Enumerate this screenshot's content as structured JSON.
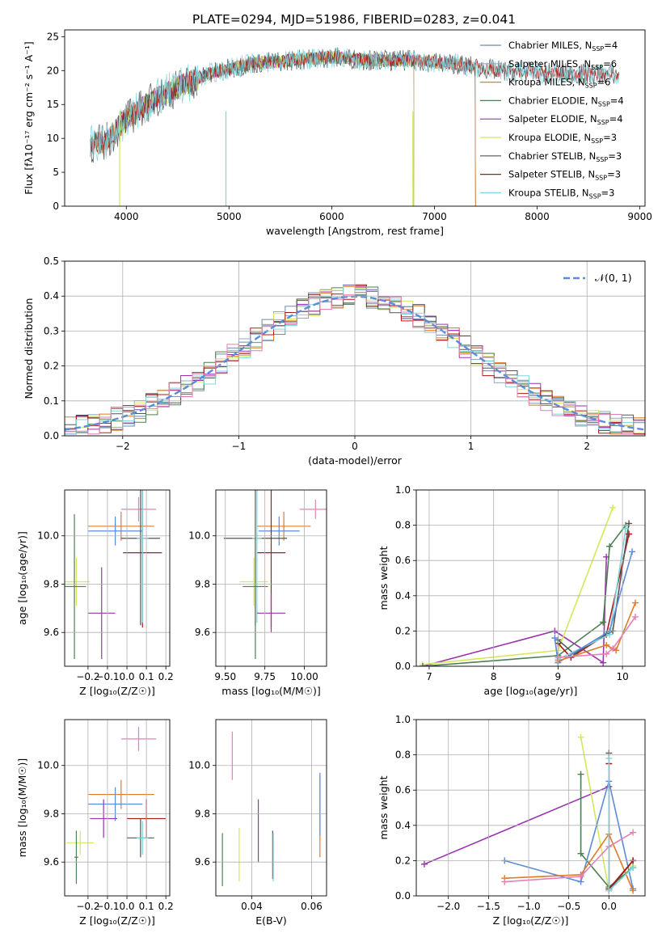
{
  "figure": {
    "title": "PLATE=0294, MJD=51986, FIBERID=0283, z=0.041"
  },
  "colors": {
    "Chabrier MILES": "#6a8caf",
    "Salpeter MILES": "#8fa9c4",
    "Kroupa MILES": "#e07b28",
    "Chabrier ELODIE": "#4c8050",
    "Salpeter ELODIE": "#9a33b0",
    "Kroupa ELODIE": "#d4e85a",
    "Chabrier STELIB": "#555555",
    "Salpeter STELIB": "#b01818",
    "Kroupa STELIB": "#7fd6dc",
    "pink": "#e57fb5",
    "blue": "#5b8bd9",
    "gauss": "#5b8bd9"
  },
  "chart_data": [
    {
      "id": "spectrum",
      "type": "line",
      "title": "PLATE=0294, MJD=51986, FIBERID=0283, z=0.041",
      "xlabel": "wavelength [Angstrom, rest frame]",
      "ylabel": "Flux [fλ10⁻¹⁷ erg cm⁻² s⁻¹ A⁻¹]",
      "xlim": [
        3400,
        9050
      ],
      "ylim": [
        0,
        26
      ],
      "xticks": [
        4000,
        5000,
        6000,
        7000,
        8000,
        9000
      ],
      "yticks": [
        0,
        5,
        10,
        15,
        20,
        25
      ],
      "grid": false,
      "legend_position": "right",
      "legend": [
        {
          "model": "Chabrier MILES",
          "n": "4"
        },
        {
          "model": "Salpeter MILES",
          "n": "6"
        },
        {
          "model": "Kroupa MILES",
          "n": "6"
        },
        {
          "model": "Chabrier ELODIE",
          "n": "4"
        },
        {
          "model": "Salpeter ELODIE",
          "n": "4"
        },
        {
          "model": "Kroupa ELODIE",
          "n": "3"
        },
        {
          "model": "Chabrier STELIB",
          "n": "3"
        },
        {
          "model": "Salpeter STELIB",
          "n": "3"
        },
        {
          "model": "Kroupa STELIB",
          "n": "3"
        }
      ],
      "continuum": {
        "x": [
          3650,
          3800,
          3950,
          4100,
          4300,
          4500,
          4800,
          5200,
          5600,
          6000,
          6400,
          6800,
          7200,
          7600,
          8000,
          8400,
          8800
        ],
        "y": [
          9,
          9.5,
          12,
          14,
          16,
          17.5,
          19.5,
          21,
          21.5,
          22,
          21.5,
          21.5,
          21,
          20,
          19.7,
          19.5,
          19.5
        ]
      },
      "coverage": [
        {
          "model": "Chabrier MILES",
          "x": [
            3650,
            7400
          ]
        },
        {
          "model": "Salpeter MILES",
          "x": [
            3650,
            7400
          ]
        },
        {
          "model": "Kroupa MILES",
          "x": [
            3650,
            7400
          ]
        },
        {
          "model": "Chabrier ELODIE",
          "x": [
            3900,
            6800
          ]
        },
        {
          "model": "Salpeter ELODIE",
          "x": [
            3900,
            6800
          ]
        },
        {
          "model": "Kroupa ELODIE",
          "x": [
            3900,
            6800
          ]
        },
        {
          "model": "Chabrier STELIB",
          "x": [
            3650,
            8800
          ]
        },
        {
          "model": "Salpeter STELIB",
          "x": [
            3650,
            8800
          ]
        },
        {
          "model": "Kroupa STELIB",
          "x": [
            3650,
            8800
          ]
        }
      ]
    },
    {
      "id": "residuals",
      "type": "histogram",
      "xlabel": "(data-model)/error",
      "ylabel": "Normed distribution",
      "xlim": [
        -2.5,
        2.5
      ],
      "ylim": [
        0,
        0.5
      ],
      "xticks": [
        -2,
        -1,
        0,
        1,
        2
      ],
      "yticks": [
        0.0,
        0.1,
        0.2,
        0.3,
        0.4,
        0.5
      ],
      "grid": true,
      "legend_position": "top-right",
      "legend": [
        {
          "label": "𝒩(0, 1)"
        }
      ],
      "bin_width": 0.1,
      "bin_start": -2.5
    },
    {
      "id": "z-age",
      "type": "errorbar",
      "xlabel": "Z [log₁₀(Z/Z☉)]",
      "ylabel": "age  [log₁₀(age/yr)]",
      "xlim": [
        -0.32,
        0.22
      ],
      "ylim": [
        9.46,
        10.19
      ],
      "xticks": [
        -0.2,
        -0.1,
        0.0,
        0.1,
        0.2
      ],
      "yticks": [
        9.6,
        9.8,
        10.0
      ],
      "grid": true,
      "points": [
        {
          "color": "pink",
          "x": 0.06,
          "y": 10.11,
          "xerr": 0.09,
          "yerr": 0.05
        },
        {
          "color": "Kroupa MILES",
          "x": -0.03,
          "y": 10.04,
          "xerr": 0.17,
          "yerr": 0.06
        },
        {
          "color": "blue",
          "x": -0.06,
          "y": 10.02,
          "xerr": 0.14,
          "yerr": 0.06
        },
        {
          "color": "Chabrier STELIB",
          "x": 0.07,
          "y": 9.99,
          "xerr": 0.1,
          "yerr": 0.36
        },
        {
          "color": "Salpeter STELIB",
          "x": 0.08,
          "y": 9.93,
          "xerr": 0.1,
          "yerr": 0.31
        },
        {
          "color": "Kroupa STELIB",
          "x": 0.08,
          "y": 9.99,
          "xerr": 0.03,
          "yerr": 0.35
        },
        {
          "color": "Kroupa ELODIE",
          "x": -0.26,
          "y": 9.81,
          "xerr": 0.07,
          "yerr": 0.1
        },
        {
          "color": "Chabrier ELODIE",
          "x": -0.27,
          "y": 9.79,
          "xerr": 0.06,
          "yerr": 0.3
        },
        {
          "color": "Salpeter ELODIE",
          "x": -0.13,
          "y": 9.68,
          "xerr": 0.07,
          "yerr": 0.19
        }
      ]
    },
    {
      "id": "mass-age",
      "type": "errorbar",
      "xlabel": "mass [log₁₀(M/M☉)]",
      "ylabel": "",
      "xlim": [
        9.44,
        10.14
      ],
      "ylim": [
        9.46,
        10.19
      ],
      "xticks": [
        9.5,
        9.75,
        10.0
      ],
      "yticks": [
        9.6,
        9.8,
        10.0
      ],
      "grid": true,
      "points": [
        {
          "color": "pink",
          "x": 10.07,
          "y": 10.11,
          "xerr": 0.1,
          "yerr": 0.04
        },
        {
          "color": "Kroupa MILES",
          "x": 9.87,
          "y": 10.04,
          "xerr": 0.17,
          "yerr": 0.06
        },
        {
          "color": "blue",
          "x": 9.84,
          "y": 10.02,
          "xerr": 0.13,
          "yerr": 0.06
        },
        {
          "color": "Chabrier STELIB",
          "x": 9.69,
          "y": 9.99,
          "xerr": 0.2,
          "yerr": 0.36
        },
        {
          "color": "Salpeter STELIB",
          "x": 9.79,
          "y": 9.93,
          "xerr": 0.09,
          "yerr": 0.31
        },
        {
          "color": "Kroupa STELIB",
          "x": 9.7,
          "y": 9.99,
          "xerr": 0.03,
          "yerr": 0.35
        },
        {
          "color": "Kroupa ELODIE",
          "x": 9.68,
          "y": 9.81,
          "xerr": 0.09,
          "yerr": 0.1
        },
        {
          "color": "Chabrier ELODIE",
          "x": 9.69,
          "y": 9.79,
          "xerr": 0.08,
          "yerr": 0.3
        },
        {
          "color": "Salpeter ELODIE",
          "x": 9.79,
          "y": 9.68,
          "xerr": 0.09,
          "yerr": 0.08
        }
      ]
    },
    {
      "id": "age-weight",
      "type": "line",
      "xlabel": "age  [log₁₀(age/yr)]",
      "ylabel": "mass weight",
      "xlim": [
        6.8,
        10.35
      ],
      "ylim": [
        0,
        1
      ],
      "xticks": [
        7,
        8,
        9,
        10
      ],
      "yticks": [
        0.0,
        0.2,
        0.4,
        0.6,
        0.8,
        1.0
      ],
      "grid": true,
      "series": [
        {
          "color": "Salpeter ELODIE",
          "x": [
            6.9,
            8.95,
            9.7,
            9.75
          ],
          "y": [
            0.0,
            0.2,
            0.02,
            0.62
          ]
        },
        {
          "color": "Kroupa ELODIE",
          "x": [
            6.9,
            9.0,
            9.85
          ],
          "y": [
            0.01,
            0.09,
            0.9
          ]
        },
        {
          "color": "Chabrier ELODIE",
          "x": [
            6.9,
            9.0,
            9.7,
            9.8,
            10.05
          ],
          "y": [
            0.0,
            0.06,
            0.25,
            0.68,
            0.8
          ]
        },
        {
          "color": "Salpeter STELIB",
          "x": [
            9.0,
            9.2,
            9.75,
            10.1
          ],
          "y": [
            0.13,
            0.05,
            0.18,
            0.75
          ]
        },
        {
          "color": "Chabrier STELIB",
          "x": [
            9.0,
            9.25,
            9.85,
            10.1
          ],
          "y": [
            0.15,
            0.07,
            0.2,
            0.81
          ]
        },
        {
          "color": "Kroupa STELIB",
          "x": [
            9.0,
            9.8,
            10.05
          ],
          "y": [
            0.04,
            0.18,
            0.78
          ]
        },
        {
          "color": "blue",
          "x": [
            8.95,
            9.0,
            9.8,
            10.15
          ],
          "y": [
            0.16,
            0.02,
            0.2,
            0.65
          ]
        },
        {
          "color": "Kroupa MILES",
          "x": [
            9.0,
            9.75,
            9.9,
            10.2
          ],
          "y": [
            0.03,
            0.12,
            0.09,
            0.36
          ]
        },
        {
          "color": "pink",
          "x": [
            9.0,
            9.75,
            9.85,
            10.2
          ],
          "y": [
            0.05,
            0.07,
            0.1,
            0.28
          ]
        }
      ]
    },
    {
      "id": "z-mass",
      "type": "errorbar",
      "xlabel": "Z [log₁₀(Z/Z☉)]",
      "ylabel": "mass [log₁₀(M/M☉)]",
      "xlim": [
        -0.32,
        0.22
      ],
      "ylim": [
        9.46,
        10.19
      ],
      "xticks": [
        -0.2,
        -0.1,
        0.0,
        0.1,
        0.2
      ],
      "yticks": [
        9.6,
        9.8,
        10.0
      ],
      "grid": true,
      "points": [
        {
          "color": "pink",
          "x": 0.06,
          "y": 10.11,
          "xerr": 0.09,
          "yerr": 0.05
        },
        {
          "color": "Kroupa MILES",
          "x": -0.03,
          "y": 9.88,
          "xerr": 0.17,
          "yerr": 0.06
        },
        {
          "color": "blue",
          "x": -0.06,
          "y": 9.84,
          "xerr": 0.14,
          "yerr": 0.07
        },
        {
          "color": "Salpeter STELIB",
          "x": 0.1,
          "y": 9.78,
          "xerr": 0.1,
          "yerr": 0.08
        },
        {
          "color": "Chabrier STELIB",
          "x": 0.07,
          "y": 9.7,
          "xerr": 0.07,
          "yerr": 0.08
        },
        {
          "color": "Kroupa STELIB",
          "x": 0.08,
          "y": 9.7,
          "xerr": 0.03,
          "yerr": 0.07
        },
        {
          "color": "Kroupa ELODIE",
          "x": -0.24,
          "y": 9.68,
          "xerr": 0.07,
          "yerr": 0.05
        },
        {
          "color": "Chabrier ELODIE",
          "x": -0.26,
          "y": 9.62,
          "xerr": 0.01,
          "yerr": 0.11
        },
        {
          "color": "Salpeter ELODIE",
          "x": -0.12,
          "y": 9.78,
          "xerr": 0.07,
          "yerr": 0.08
        }
      ]
    },
    {
      "id": "ebv-mass",
      "type": "errorbar",
      "xlabel": "E(B-V)",
      "ylabel": "",
      "xlim": [
        0.028,
        0.065
      ],
      "ylim": [
        9.46,
        10.19
      ],
      "xticks": [
        0.04,
        0.06
      ],
      "yticks": [
        9.6,
        9.8,
        10.0
      ],
      "grid": true,
      "points": [
        {
          "color": "pink",
          "x": 0.0335,
          "y": 10.04,
          "xerr": 0,
          "yerr": 0.1
        },
        {
          "color": "Kroupa MILES",
          "x": 0.0628,
          "y": 9.79,
          "xerr": 0,
          "yerr": 0.17
        },
        {
          "color": "blue",
          "x": 0.0628,
          "y": 9.84,
          "xerr": 0,
          "yerr": 0.13
        },
        {
          "color": "Salpeter ELODIE",
          "x": 0.0422,
          "y": 9.73,
          "xerr": 0,
          "yerr": 0.13
        },
        {
          "color": "Chabrier STELIB",
          "x": 0.047,
          "y": 9.63,
          "xerr": 0,
          "yerr": 0.1
        },
        {
          "color": "Kroupa STELIB",
          "x": 0.0472,
          "y": 9.62,
          "xerr": 0,
          "yerr": 0.1
        },
        {
          "color": "Chabrier ELODIE",
          "x": 0.0302,
          "y": 9.61,
          "xerr": 0,
          "yerr": 0.11
        },
        {
          "color": "Kroupa ELODIE",
          "x": 0.0358,
          "y": 9.63,
          "xerr": 0,
          "yerr": 0.11
        }
      ]
    },
    {
      "id": "z-weight",
      "type": "line",
      "xlabel": "Z [log₁₀(Z/Z☉)]",
      "ylabel": "mass weight",
      "xlim": [
        -2.4,
        0.45
      ],
      "ylim": [
        0,
        1
      ],
      "xticks": [
        -2.0,
        -1.5,
        -1.0,
        -0.5,
        0.0
      ],
      "yticks": [
        0.0,
        0.2,
        0.4,
        0.6,
        0.8,
        1.0
      ],
      "grid": true,
      "series": [
        {
          "color": "Salpeter ELODIE",
          "x": [
            -2.3,
            0.0
          ],
          "y": [
            0.18,
            0.62
          ]
        },
        {
          "color": "Kroupa ELODIE",
          "x": [
            -0.35,
            0.0,
            0.3
          ],
          "y": [
            0.9,
            0.03,
            0.17
          ]
        },
        {
          "color": "Chabrier ELODIE",
          "x": [
            -0.35,
            -0.35,
            0.0,
            0.3
          ],
          "y": [
            0.69,
            0.24,
            0.05,
            0.16
          ]
        },
        {
          "color": "blue",
          "x": [
            -1.3,
            -0.35,
            0.0,
            0.3
          ],
          "y": [
            0.2,
            0.08,
            0.65,
            0.04
          ]
        },
        {
          "color": "Kroupa MILES",
          "x": [
            -1.3,
            -0.35,
            0.0,
            0.3
          ],
          "y": [
            0.1,
            0.12,
            0.35,
            0.03
          ]
        },
        {
          "color": "pink",
          "x": [
            -1.3,
            -0.35,
            0.0,
            0.3
          ],
          "y": [
            0.08,
            0.11,
            0.28,
            0.36
          ]
        },
        {
          "color": "Chabrier STELIB",
          "x": [
            0.0,
            0.0,
            0.3
          ],
          "y": [
            0.81,
            0.03,
            0.2
          ]
        },
        {
          "color": "Salpeter STELIB",
          "x": [
            0.0,
            0.0,
            0.3
          ],
          "y": [
            0.75,
            0.04,
            0.2
          ]
        },
        {
          "color": "Kroupa STELIB",
          "x": [
            0.0,
            0.0,
            0.3
          ],
          "y": [
            0.78,
            0.03,
            0.16
          ]
        }
      ]
    }
  ]
}
